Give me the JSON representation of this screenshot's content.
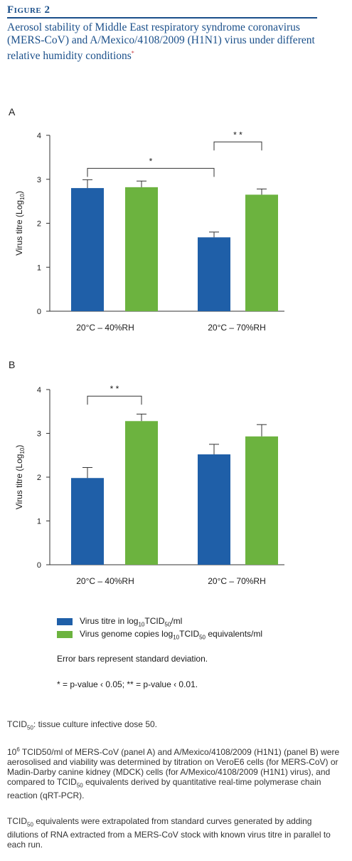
{
  "figure_label": "Figure 2",
  "figure_title": "Aerosol stability of Middle East respiratory syndrome coronavirus (MERS-CoV) and A/Mexico/4108/2009 (H1N1) virus under different relative humidity conditions",
  "title_marker": "*",
  "colors": {
    "series_blue": "#1f5fa8",
    "series_green": "#6cb33f",
    "title": "#1a4f8a",
    "marker": "#c0272d"
  },
  "chart_data": [
    {
      "type": "bar",
      "panel_label": "A",
      "categories": [
        "20°C – 40%RH",
        "20°C – 70%RH"
      ],
      "ylabel_main": "Virus titre (Log",
      "ylabel_sub": "10",
      "ylabel_end": ")",
      "ylim": [
        0,
        4
      ],
      "yticks": [
        "0",
        "1",
        "2",
        "3",
        "4"
      ],
      "series": [
        {
          "name": "Virus titre in log10TCID50/ml",
          "values": [
            2.8,
            1.68
          ],
          "errors": [
            0.19,
            0.12
          ]
        },
        {
          "name": "Virus genome copies log10TCID50 equivalents/ml",
          "values": [
            2.82,
            2.65
          ],
          "errors": [
            0.14,
            0.13
          ]
        }
      ],
      "significance": [
        {
          "label": "*",
          "from": "0-0",
          "to": "1-0",
          "y": 3.25
        },
        {
          "label": "* *",
          "from": "1-0",
          "to": "1-1",
          "y": 3.85
        }
      ]
    },
    {
      "type": "bar",
      "panel_label": "B",
      "categories": [
        "20°C – 40%RH",
        "20°C – 70%RH"
      ],
      "ylabel_main": "Virus titre (Log",
      "ylabel_sub": "10",
      "ylabel_end": ")",
      "ylim": [
        0,
        4
      ],
      "yticks": [
        "0",
        "1",
        "2",
        "3",
        "4"
      ],
      "series": [
        {
          "name": "Virus titre in log10TCID50/ml",
          "values": [
            1.98,
            2.52
          ],
          "errors": [
            0.24,
            0.23
          ]
        },
        {
          "name": "Virus genome copies log10TCID50 equivalents/ml",
          "values": [
            3.28,
            2.93
          ],
          "errors": [
            0.16,
            0.27
          ]
        }
      ],
      "significance": [
        {
          "label": "* *",
          "from": "0-0",
          "to": "0-1",
          "y": 3.85
        }
      ]
    }
  ],
  "legend": [
    {
      "pre": "Virus titre in log",
      "s1": "10",
      "mid": "TCID",
      "s2": "50",
      "post": "/ml"
    },
    {
      "pre": "Virus genome copies log",
      "s1": "10",
      "mid": "TCID",
      "s2": "50",
      "post": " equivalents/ml"
    }
  ],
  "notes": {
    "error_bars": "Error bars represent standard deviation.",
    "pvalue": "* = p-value ‹ 0.05; ** = p-value ‹ 0.01."
  },
  "captions": {
    "c1_a": "TCID",
    "c1_sub": "50",
    "c1_b": ": tissue culture infective dose 50.",
    "c2_a": "10",
    "c2_sup": "6",
    "c2_b": " TCID50/ml of MERS-CoV (panel A) and A/Mexico/4108/2009 (H1N1) (panel B) were aerosolised and viability was determined by titration on VeroE6 cells (for MERS-CoV) or Madin-Darby canine kidney (MDCK) cells (for A/Mexico/4108/2009 (H1N1) virus), and compared to TCID",
    "c2_sub": "50",
    "c2_c": " equivalents derived by quantitative real-time polymerase chain reaction (qRT-PCR).",
    "c3_a": "TCID",
    "c3_sub": "50",
    "c3_b": " equivalents were extrapolated from standard curves generated by adding dilutions of RNA extracted from a MERS-CoV stock with known virus titre in parallel to each run."
  }
}
